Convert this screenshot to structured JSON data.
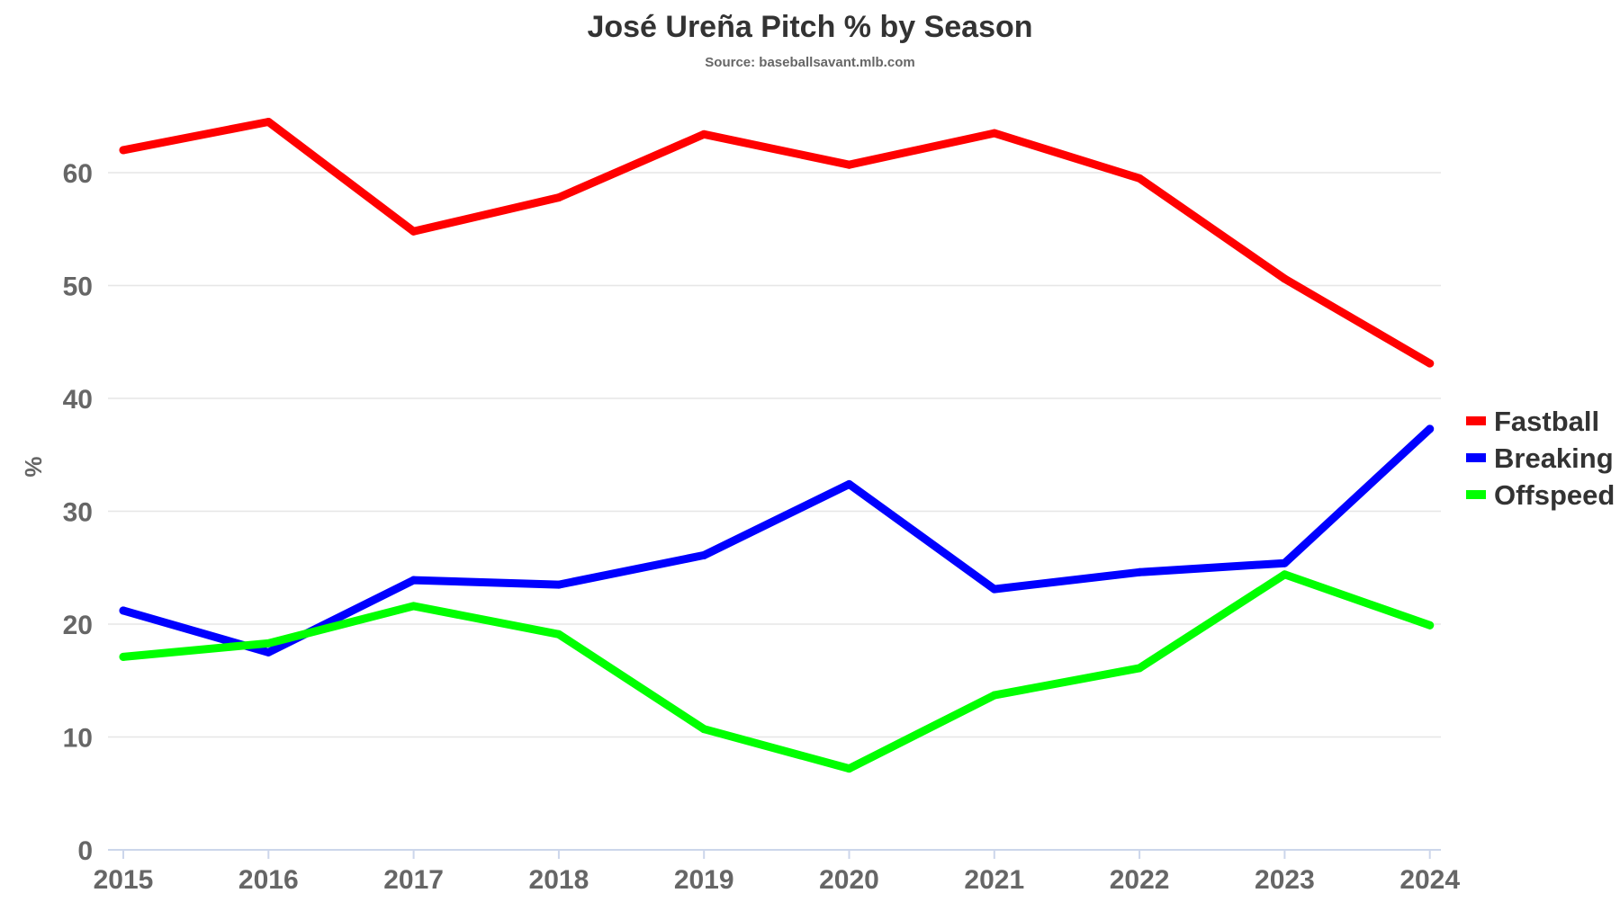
{
  "chart_data": {
    "type": "line",
    "title": "José Ureña Pitch % by Season",
    "subtitle": "Source: baseballsavant.mlb.com",
    "ylabel": "%",
    "xlabel": "",
    "categories": [
      "2015",
      "2016",
      "2017",
      "2018",
      "2019",
      "2020",
      "2021",
      "2022",
      "2023",
      "2024"
    ],
    "ylim": [
      0,
      65
    ],
    "yticks": [
      0,
      10,
      20,
      30,
      40,
      50,
      60
    ],
    "grid": true,
    "legend_placement": "right",
    "series": [
      {
        "name": "Fastball",
        "color": "#ff0000",
        "values": [
          62.0,
          64.5,
          54.8,
          57.8,
          63.4,
          60.7,
          63.5,
          59.5,
          50.6,
          43.1
        ]
      },
      {
        "name": "Breaking",
        "color": "#0000ff",
        "values": [
          21.2,
          17.5,
          23.9,
          23.5,
          26.1,
          32.4,
          23.1,
          24.6,
          25.4,
          37.3
        ]
      },
      {
        "name": "Offspeed",
        "color": "#00ff00",
        "values": [
          17.1,
          18.3,
          21.6,
          19.1,
          10.7,
          7.2,
          13.7,
          16.1,
          24.4,
          19.9
        ]
      }
    ]
  }
}
